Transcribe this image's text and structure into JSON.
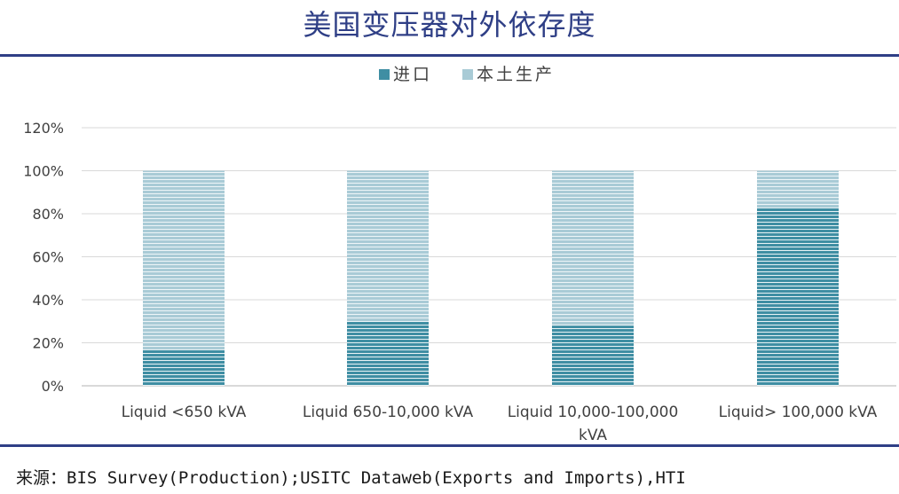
{
  "title": "美国变压器对外依存度",
  "source_label": "来源：",
  "source_text": "BIS Survey(Production);USITC Dataweb(Exports and Imports),HTI",
  "colors": {
    "title": "#2f3f86",
    "import": "#3f8ea3",
    "domestic": "#a9cbd6",
    "grid": "#d9d9d9",
    "axis_text": "#404040"
  },
  "chart_data": {
    "type": "bar",
    "stacked": true,
    "categories": [
      [
        "Liquid <650 kVA"
      ],
      [
        "Liquid 650-10,000 kVA"
      ],
      [
        "Liquid 10,000-100,000",
        "kVA"
      ],
      [
        "Liquid> 100,000 kVA"
      ]
    ],
    "series": [
      {
        "name": "进口",
        "values": [
          17,
          30,
          28,
          83
        ]
      },
      {
        "name": "本土生产",
        "values": [
          83,
          70,
          72,
          17
        ]
      }
    ],
    "yticks": [
      "0%",
      "20%",
      "40%",
      "60%",
      "80%",
      "100%",
      "120%"
    ],
    "ylim": [
      0,
      120
    ],
    "grid": true,
    "legend": "top-center"
  }
}
